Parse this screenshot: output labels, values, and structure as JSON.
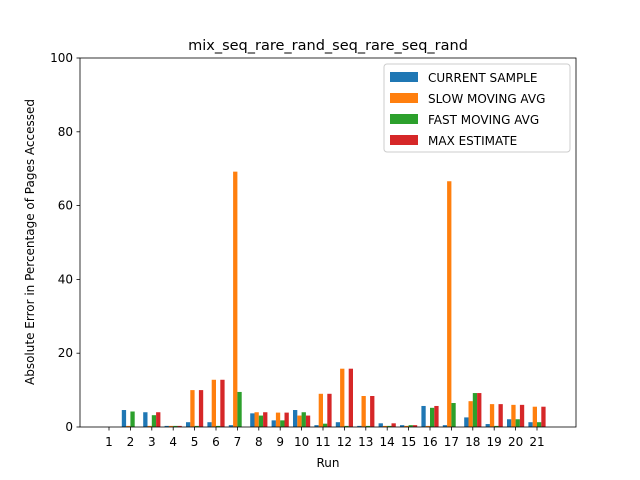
{
  "chart_data": {
    "type": "bar",
    "title": "mix_seq_rare_rand_seq_rare_seq_rand",
    "xlabel": "Run",
    "ylabel": "Absolute Error in Percentage of Pages Accessed",
    "ylim": [
      0,
      100
    ],
    "yticks": [
      0,
      20,
      40,
      60,
      80,
      100
    ],
    "grid": false,
    "legend_position": "top-right",
    "categories": [
      "1",
      "2",
      "3",
      "4",
      "5",
      "6",
      "7",
      "8",
      "9",
      "10",
      "11",
      "12",
      "13",
      "14",
      "15",
      "16",
      "17",
      "18",
      "19",
      "20",
      "21"
    ],
    "series": [
      {
        "name": "CURRENT SAMPLE",
        "color": "#1f77b4",
        "values": [
          0,
          4.6,
          4.0,
          0.3,
          1.3,
          1.3,
          0.5,
          3.7,
          1.8,
          4.6,
          0.5,
          1.3,
          0.3,
          1.0,
          0.5,
          5.7,
          0.5,
          2.6,
          0.8,
          2.1,
          1.3
        ]
      },
      {
        "name": "SLOW MOVING AVG",
        "color": "#ff7f0e",
        "values": [
          0,
          0.3,
          0.3,
          0.3,
          10.0,
          12.8,
          69.2,
          4.0,
          3.9,
          3.1,
          9.0,
          15.8,
          8.4,
          0.3,
          0.3,
          0.3,
          66.6,
          7.0,
          6.2,
          6.0,
          5.5
        ]
      },
      {
        "name": "FAST MOVING AVG",
        "color": "#2ca02c",
        "values": [
          0,
          4.2,
          3.2,
          0.3,
          0.3,
          0.3,
          9.5,
          3.1,
          1.8,
          4.0,
          0.9,
          0.3,
          0.3,
          0.3,
          0.5,
          5.2,
          6.5,
          9.2,
          0.3,
          2.1,
          1.3
        ]
      },
      {
        "name": "MAX ESTIMATE",
        "color": "#d62728",
        "values": [
          0,
          0,
          4.0,
          0.3,
          10.0,
          12.8,
          0,
          4.0,
          3.9,
          3.1,
          9.0,
          15.8,
          8.4,
          1.0,
          0.5,
          5.7,
          0,
          9.2,
          6.2,
          6.0,
          5.5
        ]
      }
    ]
  }
}
